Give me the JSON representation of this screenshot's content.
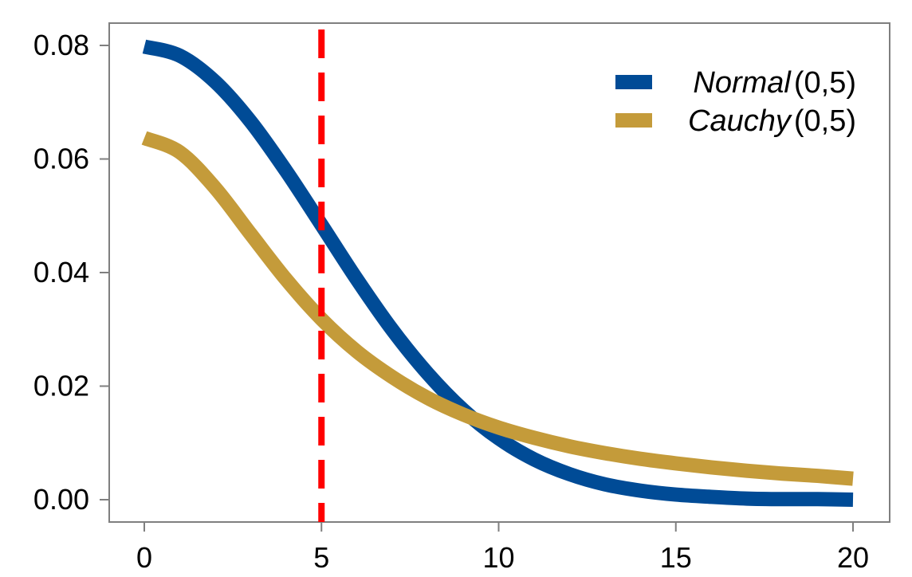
{
  "chart_data": {
    "type": "line",
    "title": "",
    "xlabel": "",
    "ylabel": "",
    "xlim": [
      0,
      20
    ],
    "ylim": [
      0,
      0.08
    ],
    "x_ticks": [
      0,
      5,
      10,
      15,
      20
    ],
    "x_tick_labels": [
      "0",
      "5",
      "10",
      "15",
      "20"
    ],
    "y_ticks": [
      0,
      0.02,
      0.04,
      0.06,
      0.08
    ],
    "y_tick_labels": [
      "0.00",
      "0.02",
      "0.04",
      "0.06",
      "0.08"
    ],
    "grid": false,
    "legend_position": "top-right",
    "series": [
      {
        "name": "Normal",
        "param": "(0,5)",
        "color": "#004b96",
        "x": [
          0,
          1,
          2,
          3,
          4,
          5,
          6,
          7,
          8,
          9,
          10,
          11,
          12,
          13,
          14,
          15,
          16,
          17,
          18,
          19,
          20
        ],
        "y": [
          0.0798,
          0.0782,
          0.0736,
          0.0666,
          0.0579,
          0.0484,
          0.0388,
          0.0299,
          0.0222,
          0.0158,
          0.0108,
          0.0071,
          0.0045,
          0.0027,
          0.0016,
          0.0009,
          0.0005,
          0.0002,
          0.0001,
          0.0001,
          0.0
        ]
      },
      {
        "name": "Cauchy",
        "param": "(0,5)",
        "color": "#c49b3a",
        "x": [
          0,
          1,
          2,
          3,
          4,
          5,
          6,
          7,
          8,
          9,
          10,
          11,
          12,
          13,
          14,
          15,
          16,
          17,
          18,
          19,
          20
        ],
        "y": [
          0.0637,
          0.0612,
          0.0549,
          0.0468,
          0.0388,
          0.0318,
          0.0261,
          0.0216,
          0.0179,
          0.015,
          0.0127,
          0.0109,
          0.0094,
          0.0082,
          0.0072,
          0.0064,
          0.0057,
          0.0051,
          0.0046,
          0.0042,
          0.0037
        ]
      }
    ],
    "reference_line": {
      "x": 5,
      "color": "#ff0000",
      "style": "dashed"
    },
    "frame_color": "#7f7f7f"
  }
}
